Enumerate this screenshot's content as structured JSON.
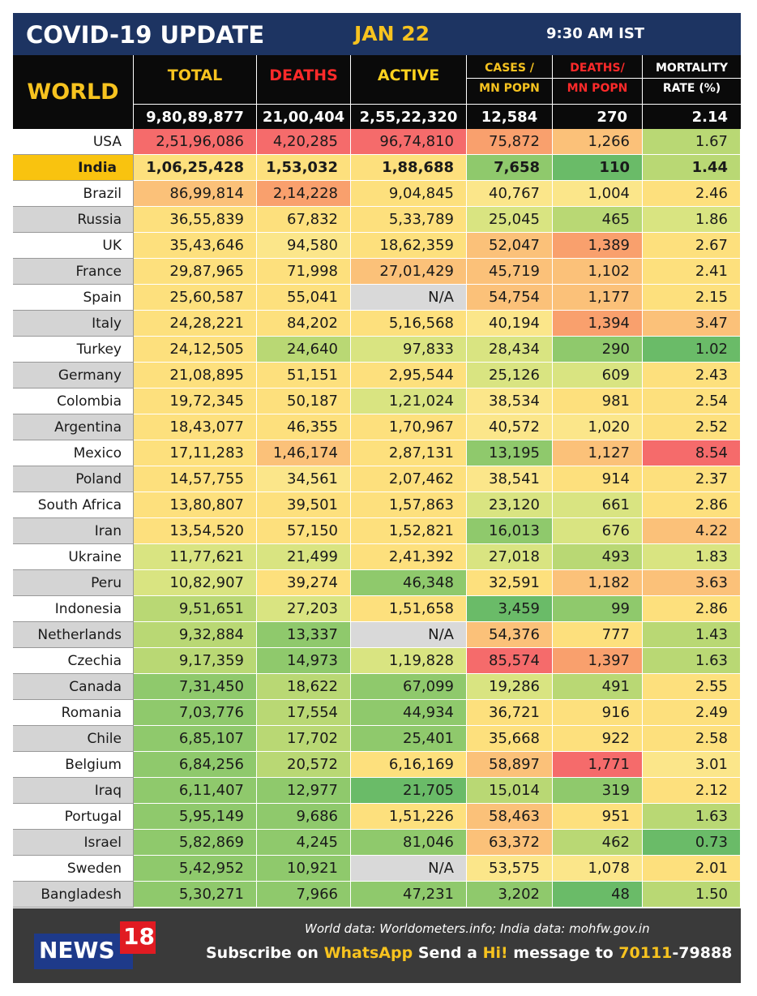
{
  "title": "COVID-19 UPDATE",
  "date": "JAN 22",
  "time": "9:30 AM IST",
  "colors": {
    "header_bg": "#1d3462",
    "accent_yellow": "#f7c31f",
    "accent_red": "#ff2a2a",
    "india_highlight": "#f9c30f",
    "footer_bg": "#3a3a3a"
  },
  "header": {
    "world_label": "WORLD",
    "columns": [
      {
        "line1": "TOTAL",
        "line2": ""
      },
      {
        "line1": "DEATHS",
        "line2": ""
      },
      {
        "line1": "ACTIVE",
        "line2": ""
      },
      {
        "line1": "CASES /",
        "line2": "MN POPN"
      },
      {
        "line1": "DEATHS/",
        "line2": "MN POPN"
      },
      {
        "line1": "MORTALITY",
        "line2": "RATE (%)"
      }
    ],
    "world_totals": [
      "9,80,89,877",
      "21,00,404",
      "2,55,22,320",
      "12,584",
      "270",
      "2.14"
    ]
  },
  "rows": [
    {
      "country": "USA",
      "total": "2,51,96,086",
      "deaths": "4,20,285",
      "active": "96,74,810",
      "cases_mn": "75,872",
      "deaths_mn": "1,266",
      "mortality": "1.67"
    },
    {
      "country": "India",
      "total": "1,06,25,428",
      "deaths": "1,53,032",
      "active": "1,88,688",
      "cases_mn": "7,658",
      "deaths_mn": "110",
      "mortality": "1.44"
    },
    {
      "country": "Brazil",
      "total": "86,99,814",
      "deaths": "2,14,228",
      "active": "9,04,845",
      "cases_mn": "40,767",
      "deaths_mn": "1,004",
      "mortality": "2.46"
    },
    {
      "country": "Russia",
      "total": "36,55,839",
      "deaths": "67,832",
      "active": "5,33,789",
      "cases_mn": "25,045",
      "deaths_mn": "465",
      "mortality": "1.86"
    },
    {
      "country": "UK",
      "total": "35,43,646",
      "deaths": "94,580",
      "active": "18,62,359",
      "cases_mn": "52,047",
      "deaths_mn": "1,389",
      "mortality": "2.67"
    },
    {
      "country": "France",
      "total": "29,87,965",
      "deaths": "71,998",
      "active": "27,01,429",
      "cases_mn": "45,719",
      "deaths_mn": "1,102",
      "mortality": "2.41"
    },
    {
      "country": "Spain",
      "total": "25,60,587",
      "deaths": "55,041",
      "active": "N/A",
      "cases_mn": "54,754",
      "deaths_mn": "1,177",
      "mortality": "2.15"
    },
    {
      "country": "Italy",
      "total": "24,28,221",
      "deaths": "84,202",
      "active": "5,16,568",
      "cases_mn": "40,194",
      "deaths_mn": "1,394",
      "mortality": "3.47"
    },
    {
      "country": "Turkey",
      "total": "24,12,505",
      "deaths": "24,640",
      "active": "97,833",
      "cases_mn": "28,434",
      "deaths_mn": "290",
      "mortality": "1.02"
    },
    {
      "country": "Germany",
      "total": "21,08,895",
      "deaths": "51,151",
      "active": "2,95,544",
      "cases_mn": "25,126",
      "deaths_mn": "609",
      "mortality": "2.43"
    },
    {
      "country": "Colombia",
      "total": "19,72,345",
      "deaths": "50,187",
      "active": "1,21,024",
      "cases_mn": "38,534",
      "deaths_mn": "981",
      "mortality": "2.54"
    },
    {
      "country": "Argentina",
      "total": "18,43,077",
      "deaths": "46,355",
      "active": "1,70,967",
      "cases_mn": "40,572",
      "deaths_mn": "1,020",
      "mortality": "2.52"
    },
    {
      "country": "Mexico",
      "total": "17,11,283",
      "deaths": "1,46,174",
      "active": "2,87,131",
      "cases_mn": "13,195",
      "deaths_mn": "1,127",
      "mortality": "8.54"
    },
    {
      "country": "Poland",
      "total": "14,57,755",
      "deaths": "34,561",
      "active": "2,07,462",
      "cases_mn": "38,541",
      "deaths_mn": "914",
      "mortality": "2.37"
    },
    {
      "country": "South Africa",
      "total": "13,80,807",
      "deaths": "39,501",
      "active": "1,57,863",
      "cases_mn": "23,120",
      "deaths_mn": "661",
      "mortality": "2.86"
    },
    {
      "country": "Iran",
      "total": "13,54,520",
      "deaths": "57,150",
      "active": "1,52,821",
      "cases_mn": "16,013",
      "deaths_mn": "676",
      "mortality": "4.22"
    },
    {
      "country": "Ukraine",
      "total": "11,77,621",
      "deaths": "21,499",
      "active": "2,41,392",
      "cases_mn": "27,018",
      "deaths_mn": "493",
      "mortality": "1.83"
    },
    {
      "country": "Peru",
      "total": "10,82,907",
      "deaths": "39,274",
      "active": "46,348",
      "cases_mn": "32,591",
      "deaths_mn": "1,182",
      "mortality": "3.63"
    },
    {
      "country": "Indonesia",
      "total": "9,51,651",
      "deaths": "27,203",
      "active": "1,51,658",
      "cases_mn": "3,459",
      "deaths_mn": "99",
      "mortality": "2.86"
    },
    {
      "country": "Netherlands",
      "total": "9,32,884",
      "deaths": "13,337",
      "active": "N/A",
      "cases_mn": "54,376",
      "deaths_mn": "777",
      "mortality": "1.43"
    },
    {
      "country": "Czechia",
      "total": "9,17,359",
      "deaths": "14,973",
      "active": "1,19,828",
      "cases_mn": "85,574",
      "deaths_mn": "1,397",
      "mortality": "1.63"
    },
    {
      "country": "Canada",
      "total": "7,31,450",
      "deaths": "18,622",
      "active": "67,099",
      "cases_mn": "19,286",
      "deaths_mn": "491",
      "mortality": "2.55"
    },
    {
      "country": "Romania",
      "total": "7,03,776",
      "deaths": "17,554",
      "active": "44,934",
      "cases_mn": "36,721",
      "deaths_mn": "916",
      "mortality": "2.49"
    },
    {
      "country": "Chile",
      "total": "6,85,107",
      "deaths": "17,702",
      "active": "25,401",
      "cases_mn": "35,668",
      "deaths_mn": "922",
      "mortality": "2.58"
    },
    {
      "country": "Belgium",
      "total": "6,84,256",
      "deaths": "20,572",
      "active": "6,16,169",
      "cases_mn": "58,897",
      "deaths_mn": "1,771",
      "mortality": "3.01"
    },
    {
      "country": "Iraq",
      "total": "6,11,407",
      "deaths": "12,977",
      "active": "21,705",
      "cases_mn": "15,014",
      "deaths_mn": "319",
      "mortality": "2.12"
    },
    {
      "country": "Portugal",
      "total": "5,95,149",
      "deaths": "9,686",
      "active": "1,51,226",
      "cases_mn": "58,463",
      "deaths_mn": "951",
      "mortality": "1.63"
    },
    {
      "country": "Israel",
      "total": "5,82,869",
      "deaths": "4,245",
      "active": "81,046",
      "cases_mn": "63,372",
      "deaths_mn": "462",
      "mortality": "0.73"
    },
    {
      "country": "Sweden",
      "total": "5,42,952",
      "deaths": "10,921",
      "active": "N/A",
      "cases_mn": "53,575",
      "deaths_mn": "1,078",
      "mortality": "2.01"
    },
    {
      "country": "Bangladesh",
      "total": "5,30,271",
      "deaths": "7,966",
      "active": "47,231",
      "cases_mn": "3,202",
      "deaths_mn": "48",
      "mortality": "1.50"
    }
  ],
  "highlight_country": "India",
  "footer": {
    "logo_text": "NEWS",
    "logo_number": "18",
    "source_line": "World data: Worldometers.info; India data: mohfw.gov.in",
    "subscribe_prefix": "Subscribe on",
    "subscribe_app": "WhatsApp",
    "subscribe_mid": "Send a",
    "subscribe_word": "Hi!",
    "subscribe_suffix": "message to",
    "phone_highlight": "70111",
    "phone_rest": "-79888"
  }
}
